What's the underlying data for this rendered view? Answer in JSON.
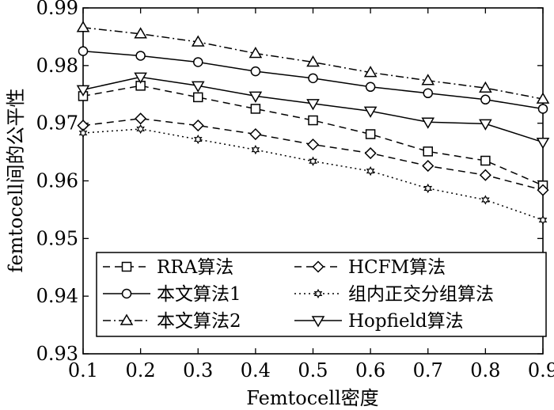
{
  "chart_data": {
    "type": "line",
    "xlabel": "Femtocell密度",
    "ylabel": "femtocell间的公平性",
    "xlim": [
      0.1,
      0.9
    ],
    "ylim": [
      0.93,
      0.99
    ],
    "x": [
      0.1,
      0.2,
      0.3,
      0.4,
      0.5,
      0.6,
      0.7,
      0.8,
      0.9
    ],
    "x_tick_labels": [
      "0.1",
      "0.2",
      "0.3",
      "0.4",
      "0.5",
      "0.6",
      "0.7",
      "0.8",
      "0.9"
    ],
    "y_ticks": [
      0.93,
      0.94,
      0.95,
      0.96,
      0.97,
      0.98,
      0.99
    ],
    "y_tick_labels": [
      "0.93",
      "0.94",
      "0.95",
      "0.96",
      "0.97",
      "0.98",
      "0.99"
    ],
    "grid": false,
    "legend_placement": "bottom",
    "series": [
      {
        "name": "RRA算法",
        "marker": "square",
        "dash": "dashed",
        "values": [
          0.9747,
          0.9765,
          0.9745,
          0.9725,
          0.9705,
          0.9681,
          0.9651,
          0.9635,
          0.9592
        ]
      },
      {
        "name": "HCFM算法",
        "marker": "diamond",
        "dash": "dashed",
        "values": [
          0.9696,
          0.9708,
          0.9696,
          0.9681,
          0.9663,
          0.9648,
          0.9626,
          0.961,
          0.9584
        ]
      },
      {
        "name": "本文算法1",
        "marker": "circle",
        "dash": "solid",
        "values": [
          0.9825,
          0.9817,
          0.9806,
          0.979,
          0.9778,
          0.9763,
          0.9752,
          0.9741,
          0.9725
        ]
      },
      {
        "name": "组内正交分组算法",
        "marker": "star",
        "dash": "dotted",
        "values": [
          0.9683,
          0.969,
          0.9672,
          0.9654,
          0.9634,
          0.9617,
          0.9587,
          0.9567,
          0.9532
        ]
      },
      {
        "name": "本文算法2",
        "marker": "triangle-up",
        "dash": "dashdot",
        "values": [
          0.9866,
          0.9855,
          0.9841,
          0.9821,
          0.9806,
          0.9788,
          0.9774,
          0.9761,
          0.9742
        ]
      },
      {
        "name": "Hopfield算法",
        "marker": "triangle-down",
        "dash": "solid",
        "values": [
          0.9758,
          0.978,
          0.9765,
          0.9747,
          0.9734,
          0.9721,
          0.9702,
          0.9699,
          0.9667
        ]
      }
    ]
  }
}
